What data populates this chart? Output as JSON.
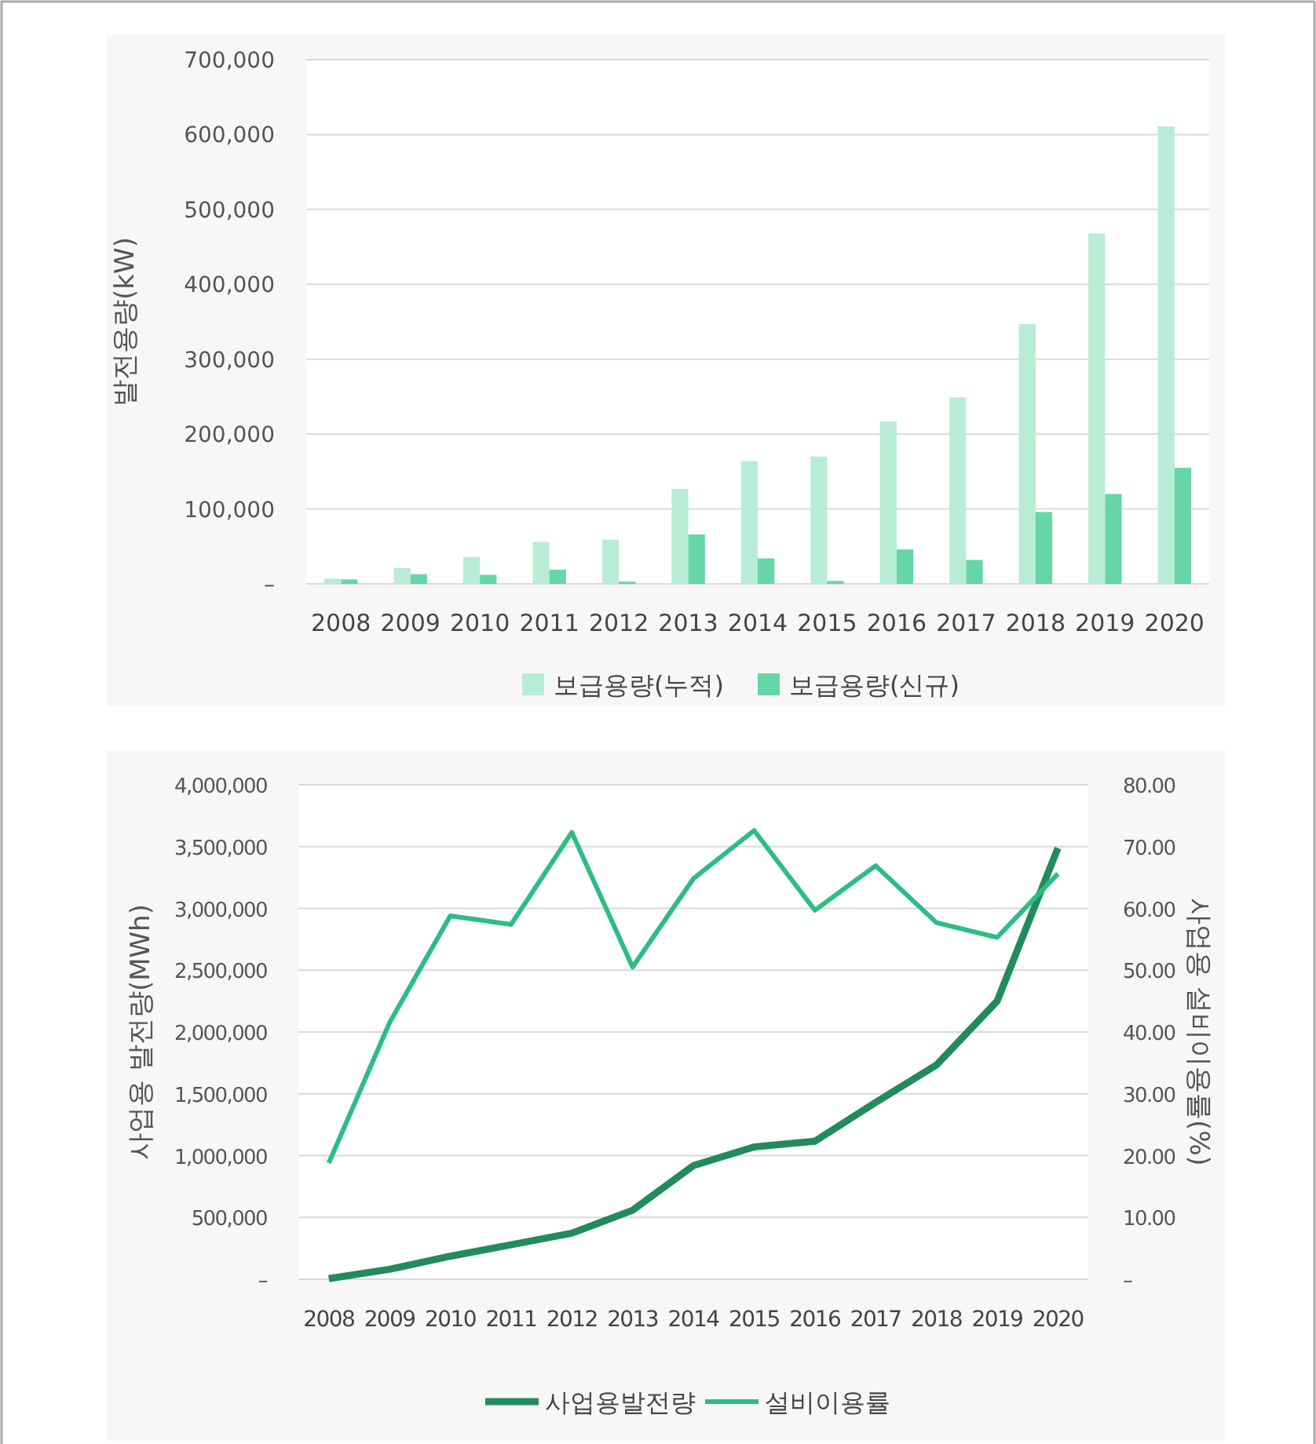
{
  "chart_data": [
    {
      "type": "bar",
      "ylabel": "발전용량(kW)",
      "categories": [
        "2008",
        "2009",
        "2010",
        "2011",
        "2012",
        "2013",
        "2014",
        "2015",
        "2016",
        "2017",
        "2018",
        "2019",
        "2020"
      ],
      "series": [
        {
          "name": "보급용량(누적)",
          "color": "#b8ecd6",
          "values": [
            7000,
            21000,
            36000,
            56000,
            59000,
            127000,
            164000,
            170000,
            217000,
            249000,
            347000,
            468000,
            611000
          ]
        },
        {
          "name": "보급용량(신규)",
          "color": "#66d6a8",
          "values": [
            6000,
            13000,
            12000,
            19000,
            3000,
            66000,
            34000,
            4000,
            46000,
            32000,
            96000,
            120000,
            155000
          ]
        }
      ],
      "ylim": [
        0,
        700000
      ],
      "yticks": [
        {
          "value": 0,
          "label": "–"
        },
        {
          "value": 100000,
          "label": "100,000"
        },
        {
          "value": 200000,
          "label": "200,000"
        },
        {
          "value": 300000,
          "label": "300,000"
        },
        {
          "value": 400000,
          "label": "400,000"
        },
        {
          "value": 500000,
          "label": "500,000"
        },
        {
          "value": 600000,
          "label": "600,000"
        },
        {
          "value": 700000,
          "label": "700,000"
        }
      ],
      "grid": "y",
      "legend": "bottom"
    },
    {
      "type": "line",
      "ylabel": "사업용 발전량(MWh)",
      "y2label": "사업용 설비이용률(%)",
      "categories": [
        "2008",
        "2009",
        "2010",
        "2011",
        "2012",
        "2013",
        "2014",
        "2015",
        "2016",
        "2017",
        "2018",
        "2019",
        "2020"
      ],
      "series": [
        {
          "name": "사업용발전량",
          "color": "#228b5e",
          "values": [
            5000,
            80000,
            186000,
            279000,
            372000,
            558000,
            919000,
            1070000,
            1116000,
            1430000,
            1733000,
            2250000,
            3488000
          ]
        },
        {
          "name": "설비이용률",
          "color": "#2dbd83",
          "axis": "y2",
          "values": [
            18.8,
            41.5,
            58.8,
            57.4,
            72.3,
            50.5,
            64.8,
            72.6,
            59.7,
            66.9,
            57.7,
            55.3,
            65.6
          ]
        }
      ],
      "ylim": [
        0,
        4000000
      ],
      "yticks": [
        {
          "value": 0,
          "label": "–"
        },
        {
          "value": 500000,
          "label": "500,000"
        },
        {
          "value": 1000000,
          "label": "1,000,000"
        },
        {
          "value": 1500000,
          "label": "1,500,000"
        },
        {
          "value": 2000000,
          "label": "2,000,000"
        },
        {
          "value": 2500000,
          "label": "2,500,000"
        },
        {
          "value": 3000000,
          "label": "3,000,000"
        },
        {
          "value": 3500000,
          "label": "3,500,000"
        },
        {
          "value": 4000000,
          "label": "4,000,000"
        }
      ],
      "y2lim": [
        0,
        80
      ],
      "y2ticks": [
        {
          "value": 0,
          "label": "–"
        },
        {
          "value": 10,
          "label": "10.00"
        },
        {
          "value": 20,
          "label": "20.00"
        },
        {
          "value": 30,
          "label": "30.00"
        },
        {
          "value": 40,
          "label": "40.00"
        },
        {
          "value": 50,
          "label": "50.00"
        },
        {
          "value": 60,
          "label": "60.00"
        },
        {
          "value": 70,
          "label": "70.00"
        },
        {
          "value": 80,
          "label": "80.00"
        }
      ],
      "grid": "y",
      "legend": "bottom",
      "marker": "none",
      "line_style": "solid"
    }
  ]
}
